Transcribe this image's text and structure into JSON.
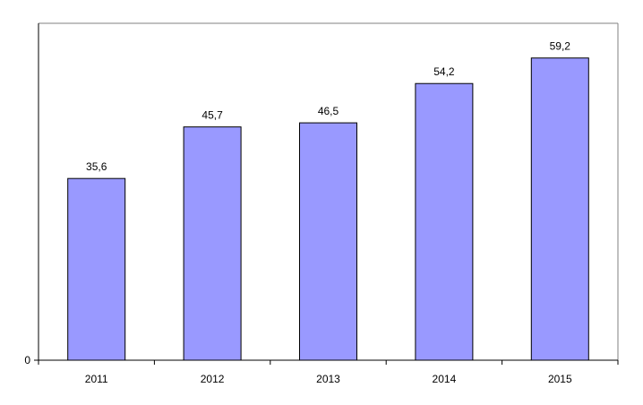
{
  "chart_data": {
    "type": "bar",
    "title": "",
    "xlabel": "",
    "ylabel": "",
    "categories": [
      "2011",
      "2012",
      "2013",
      "2014",
      "2015"
    ],
    "values": [
      35.6,
      45.7,
      46.5,
      54.2,
      59.2
    ],
    "data_labels": [
      "35,6",
      "45,7",
      "46,5",
      "54,2",
      "59,2"
    ],
    "y_tick_labels": [
      "0"
    ],
    "ylim": [
      0,
      66
    ],
    "grid": false,
    "legend": "none",
    "colors": {
      "bar_fill": "#9999ff",
      "bar_stroke": "#000000",
      "axis": "#000000",
      "plot_border": "#808080",
      "background": "#ffffff"
    }
  }
}
